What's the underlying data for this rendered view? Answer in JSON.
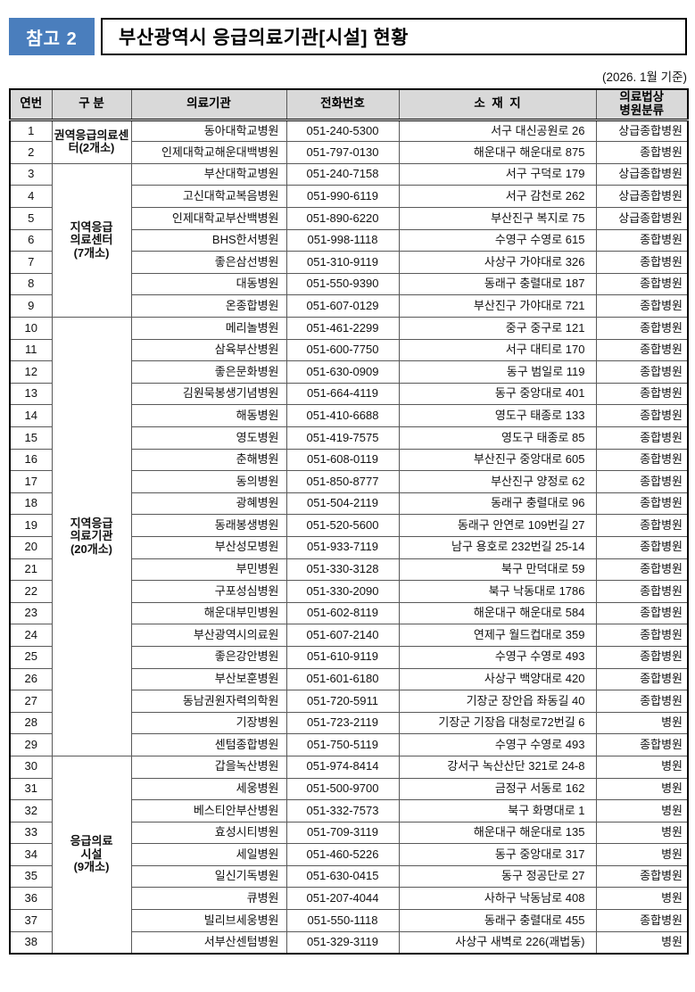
{
  "page": {
    "badge": "참고 2",
    "title": "부산광역시 응급의료기관[시설] 현황",
    "date_note": "(2026. 1월 기준)"
  },
  "colors": {
    "badge_bg": "#4A7EBD",
    "header_bg": "#D9D9D9",
    "border": "#000000"
  },
  "table": {
    "headers": [
      "연번",
      "구 분",
      "의료기관",
      "전화번호",
      "소  재  지",
      "의료법상\n병원분류"
    ],
    "groups": [
      {
        "label": "권역응급의료센\n터(2개소)",
        "start": 1,
        "span": 2
      },
      {
        "label": "지역응급\n의료센터\n(7개소)",
        "start": 3,
        "span": 7
      },
      {
        "label": "지역응급\n의료기관\n(20개소)",
        "start": 10,
        "span": 20
      },
      {
        "label": "응급의료\n시설\n(9개소)",
        "start": 30,
        "span": 9
      }
    ],
    "rows": [
      {
        "no": 1,
        "name": "동아대학교병원",
        "phone": "051-240-5300",
        "address": "서구 대신공원로 26",
        "grade": "상급종합병원"
      },
      {
        "no": 2,
        "name": "인제대학교해운대백병원",
        "phone": "051-797-0130",
        "address": "해운대구 해운대로 875",
        "grade": "종합병원"
      },
      {
        "no": 3,
        "name": "부산대학교병원",
        "phone": "051-240-7158",
        "address": "서구 구덕로  179",
        "grade": "상급종합병원"
      },
      {
        "no": 4,
        "name": "고신대학교복음병원",
        "phone": "051-990-6119",
        "address": "서구 감천로 262",
        "grade": "상급종합병원"
      },
      {
        "no": 5,
        "name": "인제대학교부산백병원",
        "phone": "051-890-6220",
        "address": "부산진구 복지로 75",
        "grade": "상급종합병원"
      },
      {
        "no": 6,
        "name": "BHS한서병원",
        "phone": "051-998-1118",
        "address": "수영구 수영로 615",
        "grade": "종합병원"
      },
      {
        "no": 7,
        "name": "좋은삼선병원",
        "phone": "051-310-9119",
        "address": "사상구 가야대로 326",
        "grade": "종합병원"
      },
      {
        "no": 8,
        "name": "대동병원",
        "phone": "051-550-9390",
        "address": "동래구 충렬대로 187",
        "grade": "종합병원"
      },
      {
        "no": 9,
        "name": "온종합병원",
        "phone": "051-607-0129",
        "address": "부산진구 가야대로 721",
        "grade": "종합병원"
      },
      {
        "no": 10,
        "name": "메리놀병원",
        "phone": "051-461-2299",
        "address": "중구 중구로 121",
        "grade": "종합병원"
      },
      {
        "no": 11,
        "name": "삼육부산병원",
        "phone": "051-600-7750",
        "address": "서구 대티로 170",
        "grade": "종합병원"
      },
      {
        "no": 12,
        "name": "좋은문화병원",
        "phone": "051-630-0909",
        "address": "동구 범일로 119",
        "grade": "종합병원"
      },
      {
        "no": 13,
        "name": "김원묵봉생기념병원",
        "phone": "051-664-4119",
        "address": "동구 중앙대로 401",
        "grade": "종합병원"
      },
      {
        "no": 14,
        "name": "해동병원",
        "phone": "051-410-6688",
        "address": "영도구 태종로 133",
        "grade": "종합병원"
      },
      {
        "no": 15,
        "name": "영도병원",
        "phone": "051-419-7575",
        "address": "영도구 태종로 85",
        "grade": "종합병원"
      },
      {
        "no": 16,
        "name": "춘해병원",
        "phone": "051-608-0119",
        "address": "부산진구 중앙대로 605",
        "grade": "종합병원"
      },
      {
        "no": 17,
        "name": "동의병원",
        "phone": "051-850-8777",
        "address": "부산진구 양정로 62",
        "grade": "종합병원"
      },
      {
        "no": 18,
        "name": "광혜병원",
        "phone": "051-504-2119",
        "address": "동래구 충렬대로 96",
        "grade": "종합병원"
      },
      {
        "no": 19,
        "name": "동래봉생병원",
        "phone": "051-520-5600",
        "address": "동래구 안연로 109번길 27",
        "grade": "종합병원"
      },
      {
        "no": 20,
        "name": "부산성모병원",
        "phone": "051-933-7119",
        "address": "남구 용호로 232번길 25-14",
        "grade": "종합병원"
      },
      {
        "no": 21,
        "name": "부민병원",
        "phone": "051-330-3128",
        "address": "북구 만덕대로 59",
        "grade": "종합병원"
      },
      {
        "no": 22,
        "name": "구포성심병원",
        "phone": "051-330-2090",
        "address": "북구 낙동대로 1786",
        "grade": "종합병원"
      },
      {
        "no": 23,
        "name": "해운대부민병원",
        "phone": "051-602-8119",
        "address": "해운대구 해운대로 584",
        "grade": "종합병원"
      },
      {
        "no": 24,
        "name": "부산광역시의료원",
        "phone": "051-607-2140",
        "address": "연제구 월드컵대로 359",
        "grade": "종합병원"
      },
      {
        "no": 25,
        "name": "좋은강안병원",
        "phone": "051-610-9119",
        "address": "수영구 수영로 493",
        "grade": "종합병원"
      },
      {
        "no": 26,
        "name": "부산보훈병원",
        "phone": "051-601-6180",
        "address": "사상구 백양대로 420",
        "grade": "종합병원"
      },
      {
        "no": 27,
        "name": "동남권원자력의학원",
        "phone": "051-720-5911",
        "address": "기장군 장안읍 좌동길 40",
        "grade": "종합병원"
      },
      {
        "no": 28,
        "name": "기장병원",
        "phone": "051-723-2119",
        "address": "기장군 기장읍 대청로72번길 6",
        "grade": "병원"
      },
      {
        "no": 29,
        "name": "센텀종합병원",
        "phone": "051-750-5119",
        "address": "수영구 수영로 493",
        "grade": "종합병원"
      },
      {
        "no": 30,
        "name": "갑을녹산병원",
        "phone": "051-974-8414",
        "address": "강서구 녹산산단 321로 24-8",
        "grade": "병원"
      },
      {
        "no": 31,
        "name": "세웅병원",
        "phone": "051-500-9700",
        "address": "금정구 서동로 162",
        "grade": "병원"
      },
      {
        "no": 32,
        "name": "베스티안부산병원",
        "phone": "051-332-7573",
        "address": "북구 화명대로 1",
        "grade": "병원"
      },
      {
        "no": 33,
        "name": "효성시티병원",
        "phone": "051-709-3119",
        "address": "해운대구 해운대로 135",
        "grade": "병원"
      },
      {
        "no": 34,
        "name": "세일병원",
        "phone": "051-460-5226",
        "address": "동구 중앙대로 317",
        "grade": "병원"
      },
      {
        "no": 35,
        "name": "일신기독병원",
        "phone": "051-630-0415",
        "address": "동구 정공단로 27",
        "grade": "종합병원"
      },
      {
        "no": 36,
        "name": "큐병원",
        "phone": "051-207-4044",
        "address": "사하구 낙동남로 408",
        "grade": "병원"
      },
      {
        "no": 37,
        "name": "빌리브세웅병원",
        "phone": "051-550-1118",
        "address": "동래구 충렬대로 455",
        "grade": "종합병원"
      },
      {
        "no": 38,
        "name": "서부산센텀병원",
        "phone": "051-329-3119",
        "address": "사상구 새벽로 226(괘법동)",
        "grade": "병원"
      }
    ]
  }
}
